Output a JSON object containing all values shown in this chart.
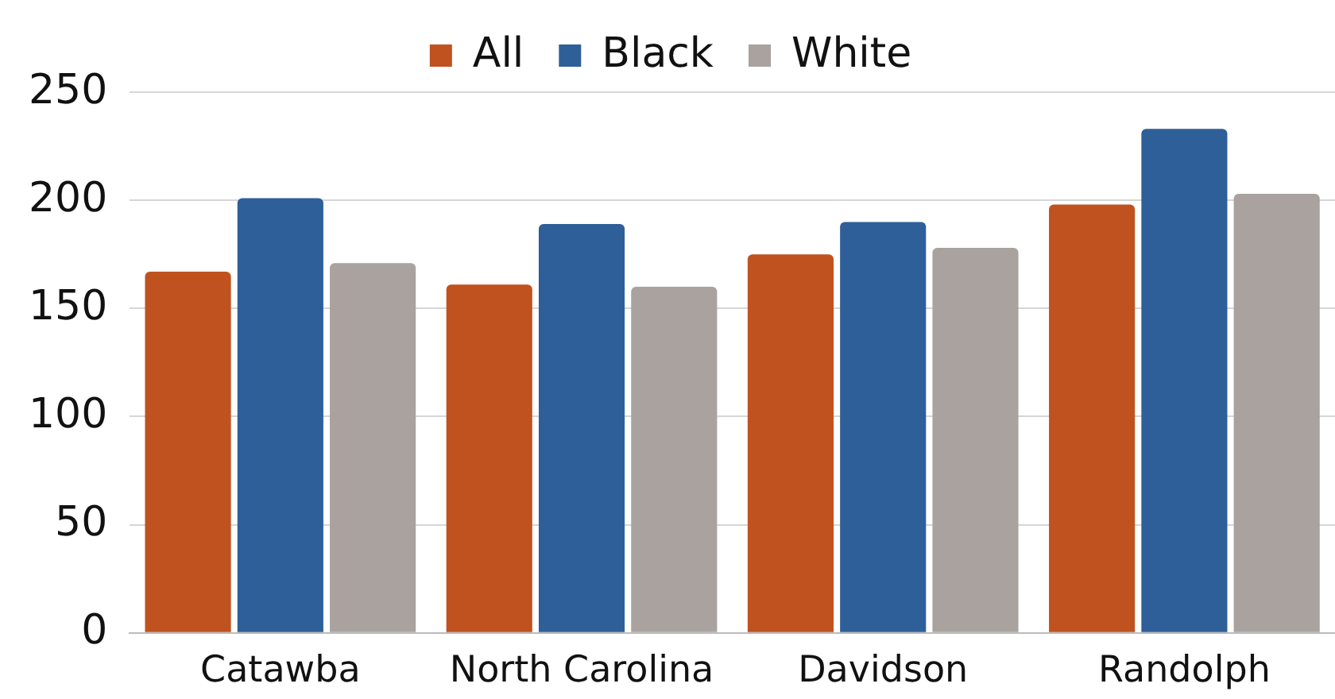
{
  "chart_data": {
    "type": "bar",
    "categories": [
      "Catawba",
      "North Carolina",
      "Davidson",
      "Randolph"
    ],
    "series": [
      {
        "name": "All",
        "color": "#c0521f",
        "values": [
          167,
          161,
          175,
          198
        ]
      },
      {
        "name": "Black",
        "color": "#2e5f98",
        "values": [
          201,
          189,
          190,
          233
        ]
      },
      {
        "name": "White",
        "color": "#aaa29e",
        "values": [
          171,
          160,
          178,
          203
        ]
      }
    ],
    "ylim": [
      0,
      250
    ],
    "yticks": [
      0,
      50,
      100,
      150,
      200,
      250
    ],
    "grid": "y",
    "legend": "top"
  }
}
